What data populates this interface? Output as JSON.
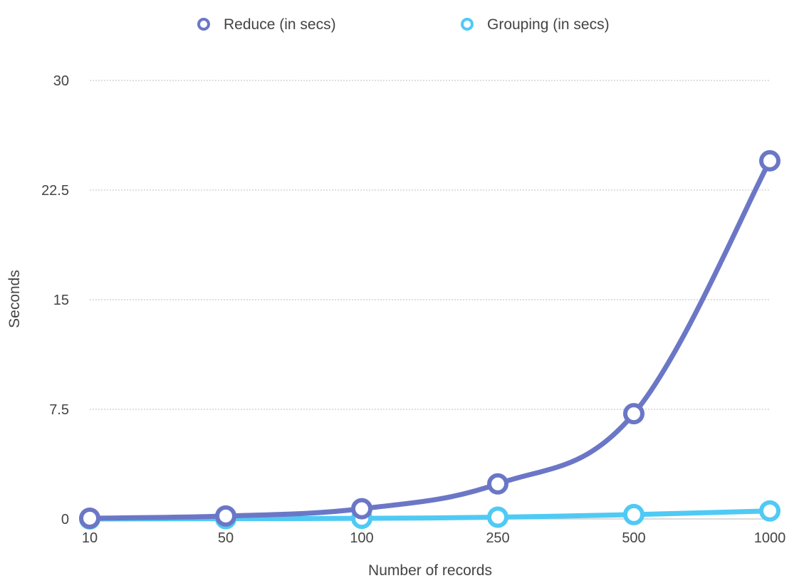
{
  "chart_data": {
    "type": "line",
    "title": "",
    "xlabel": "Number of records",
    "ylabel": "Seconds",
    "categories": [
      "10",
      "50",
      "100",
      "250",
      "500",
      "1000"
    ],
    "yticks": [
      "0",
      "7.5",
      "15",
      "22.5",
      "30"
    ],
    "ylim": [
      0,
      30
    ],
    "grid": true,
    "legend_position": "top-center",
    "series": [
      {
        "name": "Reduce (in secs)",
        "color": "#6b77c6",
        "values": [
          0.05,
          0.2,
          0.7,
          2.4,
          7.2,
          24.5
        ]
      },
      {
        "name": "Grouping (in secs)",
        "color": "#4fcaf5",
        "values": [
          0.0,
          0.02,
          0.04,
          0.12,
          0.3,
          0.55
        ]
      }
    ]
  }
}
